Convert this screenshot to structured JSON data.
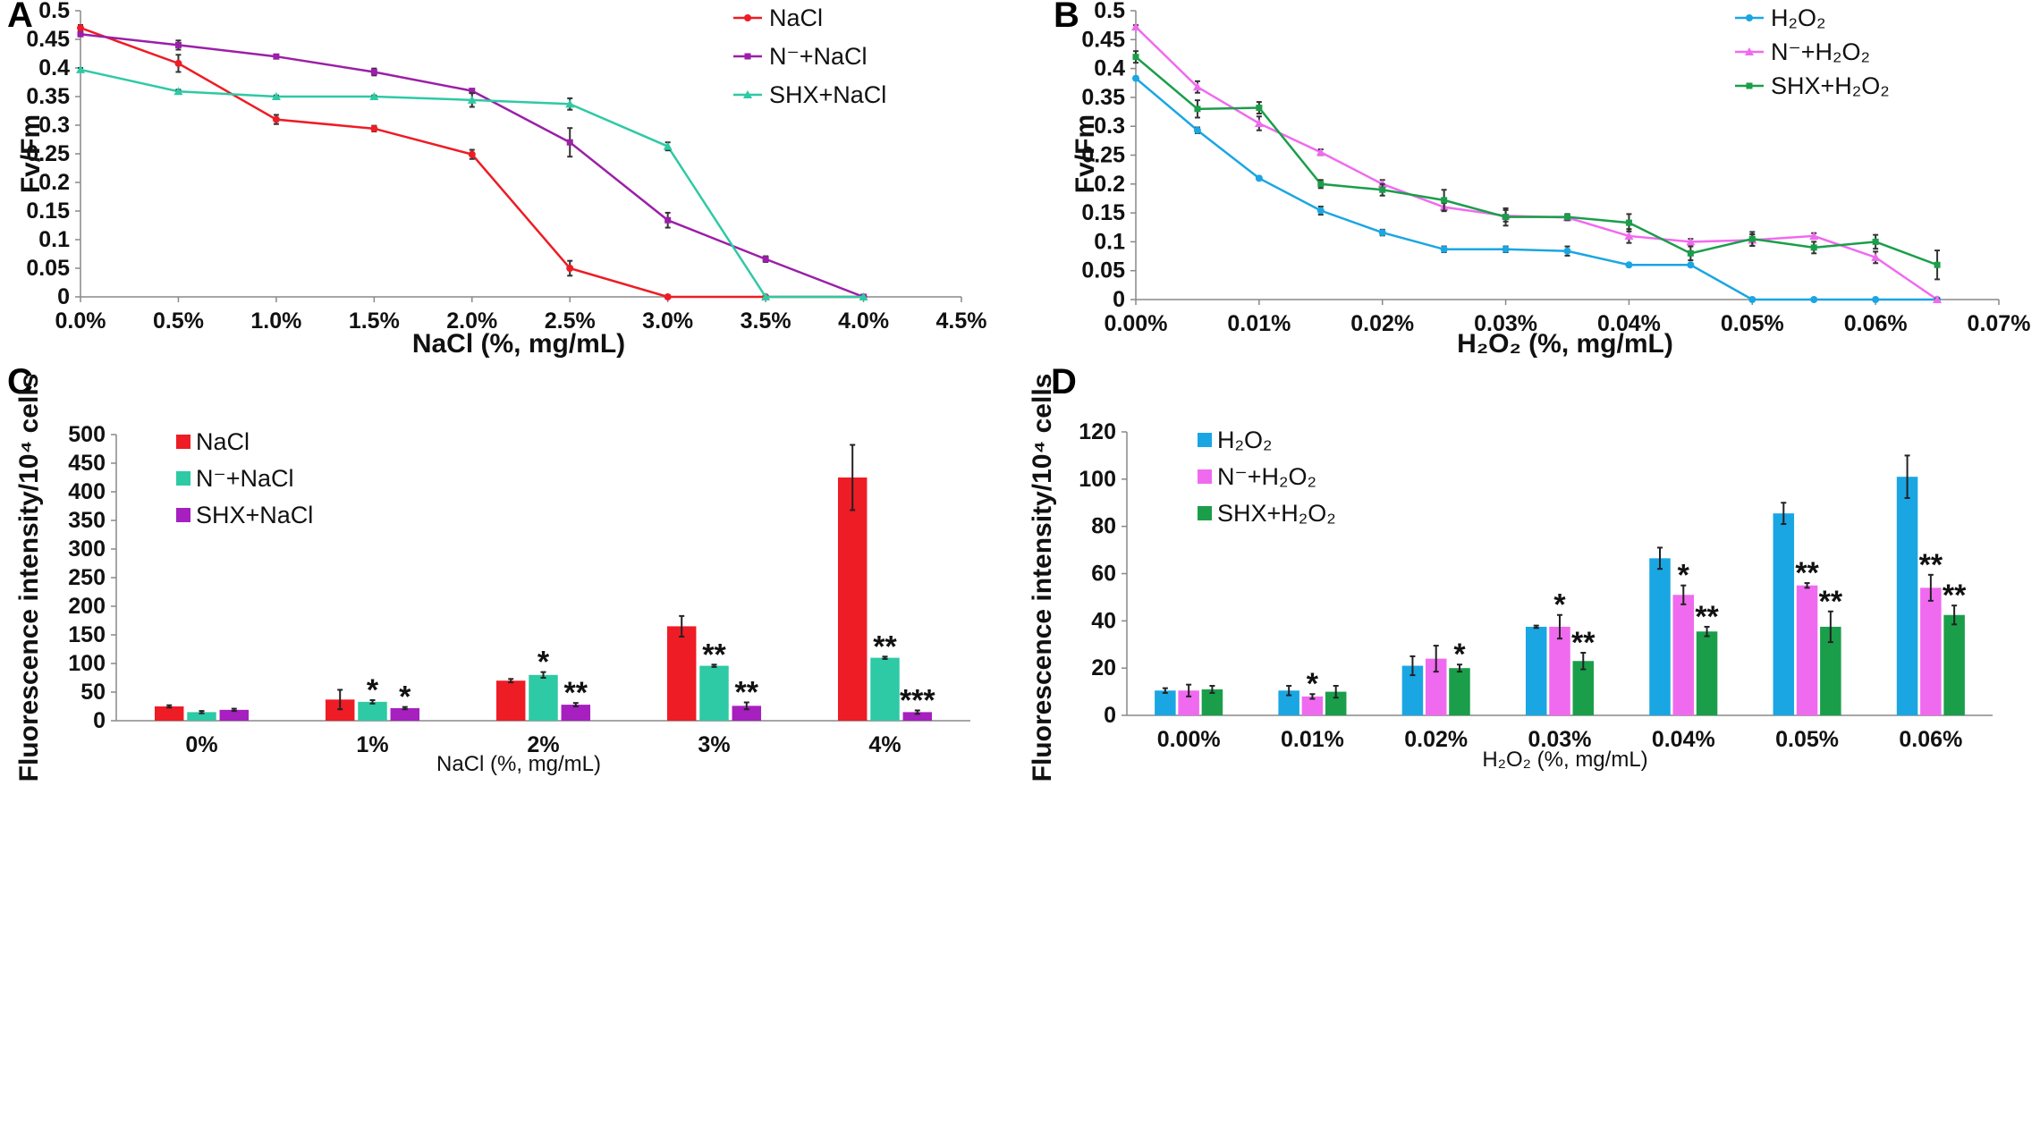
{
  "colors": {
    "nacl": "#ee1c25",
    "n_nacl_line": "#9b1fa8",
    "shx_nacl_line": "#2ec9a5",
    "n_nacl_bar": "#2ec9a5",
    "shx_nacl_bar": "#a61fbf",
    "h2o2": "#1aa6e3",
    "n_h2o2": "#f06af0",
    "shx_h2o2": "#1a9e4a"
  },
  "chart_data": [
    {
      "panel": "A",
      "type": "line",
      "ylabel": "Fv/Fm",
      "xlabel": "NaCl (%, mg/mL)",
      "x_ticks": [
        "0.0%",
        "0.5%",
        "1.0%",
        "1.5%",
        "2.0%",
        "2.5%",
        "3.0%",
        "3.5%",
        "4.0%",
        "4.5%"
      ],
      "x_values": [
        0,
        0.5,
        1.0,
        1.5,
        2.0,
        2.5,
        3.0,
        3.5,
        4.0
      ],
      "xlim": [
        0,
        4.5
      ],
      "y_ticks": [
        "0",
        "0.05",
        "0.1",
        "0.15",
        "0.2",
        "0.25",
        "0.3",
        "0.35",
        "0.4",
        "0.45",
        "0.5"
      ],
      "ylim": [
        0,
        0.5
      ],
      "legend": [
        "NaCl",
        "N⁻+NaCl",
        "SHX+NaCl"
      ],
      "series": [
        {
          "name": "NaCl",
          "color": "#ee1c25",
          "marker": "circle",
          "values": [
            0.47,
            0.408,
            0.31,
            0.294,
            0.249,
            0.05,
            0.0,
            0.0,
            0.0
          ],
          "errors": [
            0.005,
            0.015,
            0.008,
            0.005,
            0.008,
            0.013,
            0.002,
            0,
            0
          ]
        },
        {
          "name": "N⁻+NaCl",
          "color": "#9b1fa8",
          "marker": "square",
          "values": [
            0.459,
            0.44,
            0.42,
            0.393,
            0.36,
            0.27,
            0.134,
            0.066,
            0.0
          ],
          "errors": [
            0.003,
            0.008,
            0.003,
            0.006,
            0.003,
            0.025,
            0.013,
            0.005,
            0.002
          ]
        },
        {
          "name": "SHX+NaCl",
          "color": "#2ec9a5",
          "marker": "triangle",
          "values": [
            0.397,
            0.359,
            0.35,
            0.35,
            0.344,
            0.337,
            0.263,
            0.0,
            0.0
          ],
          "errors": [
            0.003,
            0.003,
            0.002,
            0.002,
            0.012,
            0.01,
            0.007,
            0,
            0
          ]
        }
      ]
    },
    {
      "panel": "B",
      "type": "line",
      "ylabel": "Fv/Fm",
      "xlabel": "H₂O₂ (%, mg/mL)",
      "x_ticks": [
        "0.00%",
        "0.01%",
        "0.02%",
        "0.03%",
        "0.04%",
        "0.05%",
        "0.06%",
        "0.07%"
      ],
      "x_values": [
        0,
        0.005,
        0.01,
        0.015,
        0.02,
        0.025,
        0.03,
        0.035,
        0.04,
        0.045,
        0.05,
        0.055,
        0.06,
        0.065
      ],
      "xlim": [
        0,
        0.07
      ],
      "y_ticks": [
        "0",
        "0.05",
        "0.1",
        "0.15",
        "0.2",
        "0.25",
        "0.3",
        "0.35",
        "0.4",
        "0.45",
        "0.5"
      ],
      "ylim": [
        0,
        0.5
      ],
      "legend": [
        "H₂O₂",
        "N⁻+H₂O₂",
        "SHX+H₂O₂"
      ],
      "series": [
        {
          "name": "H₂O₂",
          "color": "#1aa6e3",
          "marker": "circle",
          "values": [
            0.383,
            0.293,
            0.21,
            0.154,
            0.116,
            0.087,
            0.087,
            0.084,
            0.06,
            0.06,
            0.0,
            0.0,
            0.0,
            0.0
          ],
          "errors": [
            0.003,
            0.005,
            0.003,
            0.007,
            0.005,
            0.005,
            0.005,
            0.008,
            0.002,
            0.002,
            0,
            0,
            0,
            0
          ]
        },
        {
          "name": "N⁻+H₂O₂",
          "color": "#f06af0",
          "marker": "triangle",
          "values": [
            0.472,
            0.368,
            0.305,
            0.255,
            0.2,
            0.16,
            0.145,
            0.142,
            0.11,
            0.1,
            0.103,
            0.11,
            0.073,
            0.0
          ],
          "errors": [
            0.003,
            0.01,
            0.012,
            0.005,
            0.007,
            0.007,
            0.01,
            0.005,
            0.012,
            0.005,
            0.01,
            0.005,
            0.01,
            0.002
          ]
        },
        {
          "name": "SHX+H₂O₂",
          "color": "#1a9e4a",
          "marker": "square",
          "values": [
            0.42,
            0.33,
            0.332,
            0.2,
            0.19,
            0.172,
            0.143,
            0.143,
            0.133,
            0.08,
            0.105,
            0.09,
            0.1,
            0.06
          ],
          "errors": [
            0.01,
            0.015,
            0.01,
            0.007,
            0.01,
            0.018,
            0.015,
            0.005,
            0.015,
            0.012,
            0.012,
            0.01,
            0.012,
            0.025
          ]
        }
      ]
    },
    {
      "panel": "C",
      "type": "bar",
      "ylabel": "Fluorescence intensity/10⁴ cells",
      "xlabel": "NaCl (%, mg/mL)",
      "categories": [
        "0%",
        "1%",
        "2%",
        "3%",
        "4%"
      ],
      "y_ticks": [
        "0",
        "50",
        "100",
        "150",
        "200",
        "250",
        "300",
        "350",
        "400",
        "450",
        "500"
      ],
      "ylim": [
        0,
        500
      ],
      "legend": [
        "NaCl",
        "N⁻+NaCl",
        "SHX+NaCl"
      ],
      "series": [
        {
          "name": "NaCl",
          "color": "#ee1c25",
          "values": [
            25,
            37,
            70,
            165,
            425
          ],
          "errors": [
            2,
            17,
            3,
            18,
            57
          ],
          "stars": [
            "",
            "",
            "",
            "",
            ""
          ]
        },
        {
          "name": "N⁻+NaCl",
          "color": "#2ec9a5",
          "values": [
            15,
            33,
            80,
            96,
            110
          ],
          "errors": [
            2,
            3,
            5,
            2,
            2
          ],
          "stars": [
            "",
            "*",
            "*",
            "**",
            "**"
          ]
        },
        {
          "name": "SHX+NaCl",
          "color": "#a61fbf",
          "values": [
            19,
            22,
            28,
            26,
            15
          ],
          "errors": [
            2,
            2,
            3,
            6,
            3
          ],
          "stars": [
            "",
            "*",
            "**",
            "**",
            "***"
          ]
        }
      ]
    },
    {
      "panel": "D",
      "type": "bar",
      "ylabel": "Fluorescence intensity/10⁴ cells",
      "xlabel": "H₂O₂ (%, mg/mL)",
      "categories": [
        "0.00%",
        "0.01%",
        "0.02%",
        "0.03%",
        "0.04%",
        "0.05%",
        "0.06%"
      ],
      "y_ticks": [
        "0",
        "20",
        "40",
        "60",
        "80",
        "100",
        "120"
      ],
      "ylim": [
        0,
        120
      ],
      "legend": [
        "H₂O₂",
        "N⁻+H₂O₂",
        "SHX+H₂O₂"
      ],
      "series": [
        {
          "name": "H₂O₂",
          "color": "#1aa6e3",
          "values": [
            10.5,
            10.5,
            21,
            37.5,
            66.5,
            85.5,
            101
          ],
          "errors": [
            1,
            2,
            4,
            0.5,
            4.5,
            4.5,
            9
          ],
          "stars": [
            "",
            "",
            "",
            "",
            "",
            "",
            ""
          ]
        },
        {
          "name": "N⁻+H₂O₂",
          "color": "#f06af0",
          "values": [
            10.5,
            8,
            24,
            37.5,
            51,
            55,
            54
          ],
          "errors": [
            2.5,
            1,
            5.5,
            5,
            4,
            1,
            5.5
          ],
          "stars": [
            "",
            "*",
            "",
            "*",
            "*",
            "**",
            "**"
          ]
        },
        {
          "name": "SHX+H₂O₂",
          "color": "#1a9e4a",
          "values": [
            11,
            10,
            20,
            23,
            35.5,
            37.5,
            42.5
          ],
          "errors": [
            1.5,
            2.5,
            1.5,
            3.5,
            2,
            6.5,
            4
          ],
          "stars": [
            "",
            "",
            "*",
            "**",
            "**",
            "**",
            "**"
          ]
        }
      ]
    }
  ]
}
